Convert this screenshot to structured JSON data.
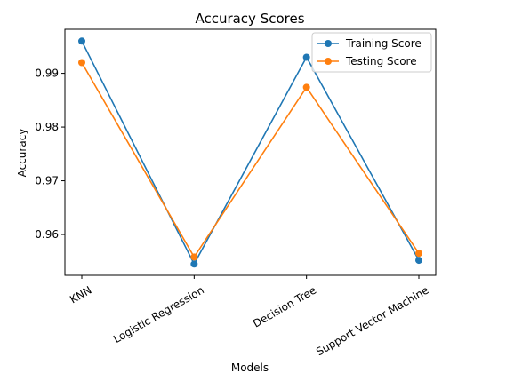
{
  "chart_data": {
    "type": "line",
    "title": "Accuracy Scores",
    "xlabel": "Models",
    "ylabel": "Accuracy",
    "categories": [
      "KNN",
      "Logistic Regression",
      "Decision Tree",
      "Support Vector Machine"
    ],
    "series": [
      {
        "name": "Training Score",
        "color": "#1f77b4",
        "values": [
          0.996,
          0.9545,
          0.993,
          0.9552
        ]
      },
      {
        "name": "Testing Score",
        "color": "#ff7f0e",
        "values": [
          0.992,
          0.9558,
          0.9874,
          0.9565
        ]
      }
    ],
    "ylim": [
      0.9524,
      0.9982
    ],
    "yticks": [
      0.96,
      0.97,
      0.98,
      0.99
    ],
    "ytick_labels": [
      "0.96",
      "0.97",
      "0.98",
      "0.99"
    ],
    "grid": false,
    "legend": "upper right",
    "marker": "circle"
  }
}
